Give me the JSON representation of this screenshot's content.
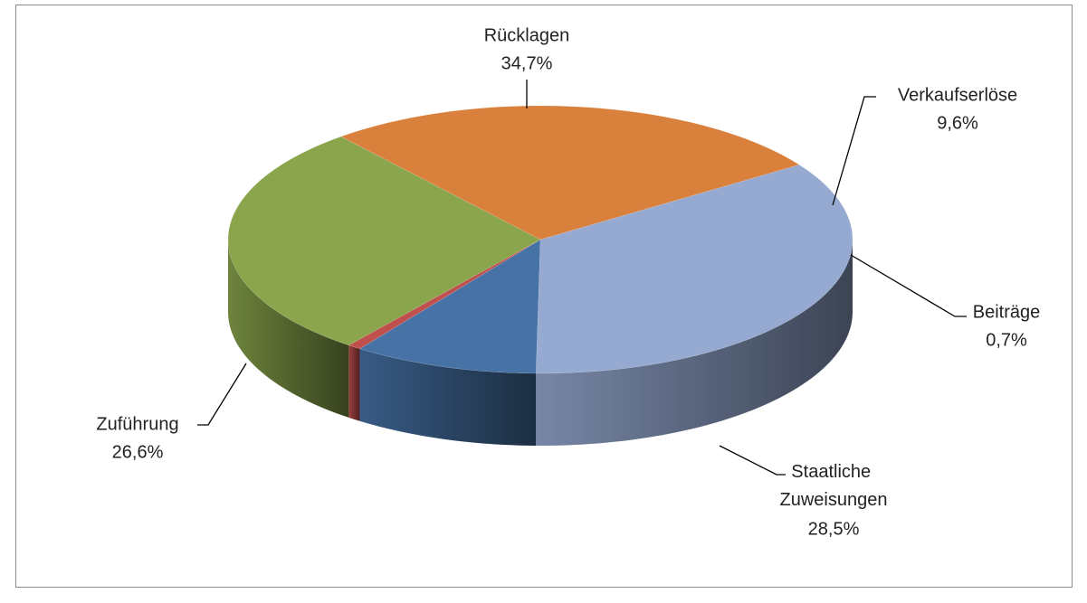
{
  "chart_data": {
    "type": "pie",
    "three_d": true,
    "categories": [
      "Rücklagen",
      "Verkaufserlöse",
      "Beiträge",
      "Staatliche Zuweisungen",
      "Zuführung"
    ],
    "values": [
      34.7,
      9.6,
      0.7,
      28.5,
      26.6
    ],
    "value_labels": [
      "34,7%",
      "9,6%",
      "0,7%",
      "28,5%",
      "26,6%"
    ],
    "colors": [
      "#95a9d1",
      "#4672a6",
      "#c0504d",
      "#8aa54c",
      "#d9803c"
    ]
  }
}
